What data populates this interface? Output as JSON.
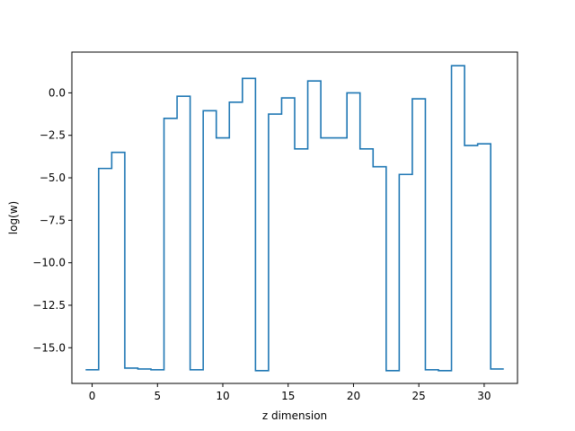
{
  "chart_data": {
    "type": "line",
    "drawstyle": "steps-mid",
    "xlabel": "z dimension",
    "ylabel": "log(w)",
    "xlim": [
      -1.55,
      32.55
    ],
    "ylim": [
      -17.1,
      2.4
    ],
    "xticks": [
      0,
      5,
      10,
      15,
      20,
      25,
      30
    ],
    "xtick_labels": [
      "0",
      "5",
      "10",
      "15",
      "20",
      "25",
      "30"
    ],
    "yticks": [
      0.0,
      -2.5,
      -5.0,
      -7.5,
      -10.0,
      -12.5,
      -15.0
    ],
    "ytick_labels": [
      "0.0",
      "−2.5",
      "−5.0",
      "−7.5",
      "−10.0",
      "−12.5",
      "−15.0"
    ],
    "grid": false,
    "series": [
      {
        "color": "#1f77b4",
        "x": [
          0,
          1,
          2,
          3,
          4,
          5,
          6,
          7,
          8,
          9,
          10,
          11,
          12,
          13,
          14,
          15,
          16,
          17,
          18,
          19,
          20,
          21,
          22,
          23,
          24,
          25,
          26,
          27,
          28,
          29,
          30,
          31
        ],
        "y": [
          -16.3,
          -4.45,
          -3.5,
          -16.2,
          -16.25,
          -16.3,
          -1.5,
          -0.2,
          -16.3,
          -1.05,
          -2.65,
          -0.55,
          0.85,
          -16.35,
          -1.25,
          -0.3,
          -3.3,
          0.7,
          -2.65,
          -2.65,
          0.0,
          -3.3,
          -4.35,
          -16.35,
          -4.8,
          -0.35,
          -16.3,
          -16.35,
          1.6,
          -3.1,
          -3.0,
          -16.25
        ]
      }
    ]
  }
}
